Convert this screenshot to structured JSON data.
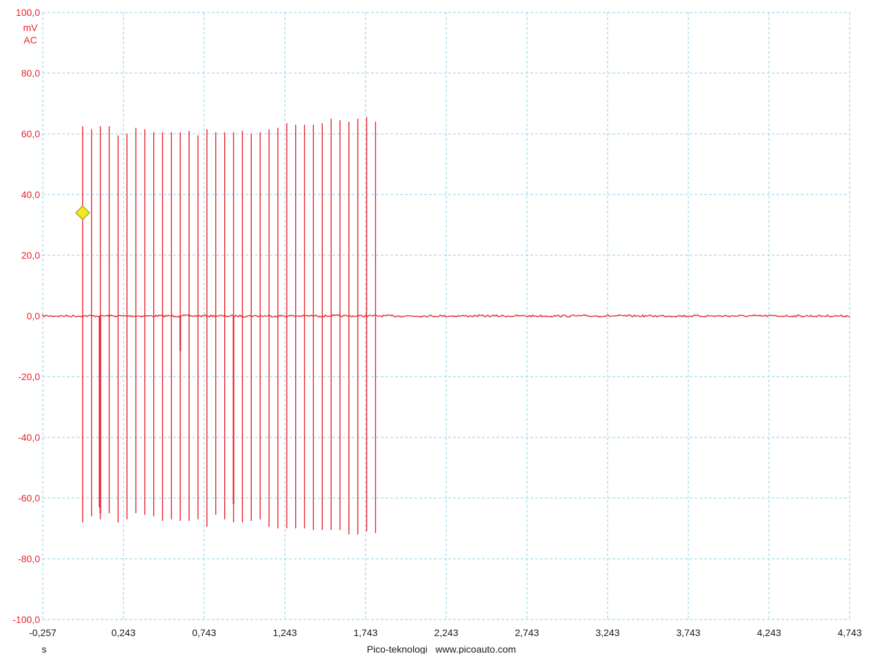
{
  "chart_data": {
    "type": "line",
    "title": "",
    "y_unit_lines": [
      "mV",
      "AC"
    ],
    "xlabel": "s",
    "footer": "Pico-teknologi   www.picoauto.com",
    "xlim": [
      -0.257,
      4.743
    ],
    "ylim": [
      -100,
      100
    ],
    "grid": true,
    "y_ticks": [
      "100,0",
      "80,0",
      "60,0",
      "40,0",
      "20,0",
      "0,0",
      "-20,0",
      "-40,0",
      "-60,0",
      "-80,0",
      "-100,0"
    ],
    "x_ticks": [
      "-0,257",
      "0,243",
      "0,743",
      "1,243",
      "1,743",
      "2,243",
      "2,743",
      "3,243",
      "3,743",
      "4,243",
      "4,743"
    ],
    "trigger_marker": {
      "x": -0.01,
      "y": 34
    },
    "colors": {
      "trace": "#e8222a",
      "grid": "#8ecfe6",
      "marker_fill": "#f5e61e",
      "axis_text": "#1a1a1a"
    },
    "series": [
      {
        "baseline_mV": 0,
        "pulses": [
          {
            "t": -0.01,
            "max": 62.5,
            "min": -68
          },
          {
            "t": 0.045,
            "max": 61.5,
            "min": -66
          },
          {
            "t": 0.1,
            "max": 62.5,
            "min": -67
          },
          {
            "t": 0.155,
            "max": 62.5,
            "min": -65
          },
          {
            "t": 0.21,
            "max": 59.5,
            "min": -68
          },
          {
            "t": 0.265,
            "max": 60,
            "min": -67
          },
          {
            "t": 0.32,
            "max": 62,
            "min": -65
          },
          {
            "t": 0.375,
            "max": 61.5,
            "min": -65.5
          },
          {
            "t": 0.43,
            "max": 60.5,
            "min": -66
          },
          {
            "t": 0.485,
            "max": 60.5,
            "min": -67.5
          },
          {
            "t": 0.54,
            "max": 60.5,
            "min": -67
          },
          {
            "t": 0.595,
            "max": 60.5,
            "min": -67.5
          },
          {
            "t": 0.65,
            "max": 61,
            "min": -67.5
          },
          {
            "t": 0.705,
            "max": 59.5,
            "min": -67
          },
          {
            "t": 0.76,
            "max": 61.5,
            "min": -69.5
          },
          {
            "t": 0.815,
            "max": 60.5,
            "min": -65.5
          },
          {
            "t": 0.87,
            "max": 60.5,
            "min": -67
          },
          {
            "t": 0.925,
            "max": 60.5,
            "min": -68
          },
          {
            "t": 0.98,
            "max": 61,
            "min": -68
          },
          {
            "t": 1.035,
            "max": 60,
            "min": -67.5
          },
          {
            "t": 1.09,
            "max": 60.5,
            "min": -67
          },
          {
            "t": 1.145,
            "max": 61.5,
            "min": -69.5
          },
          {
            "t": 1.2,
            "max": 62,
            "min": -70
          },
          {
            "t": 1.255,
            "max": 63.5,
            "min": -70
          },
          {
            "t": 1.31,
            "max": 63,
            "min": -70
          },
          {
            "t": 1.365,
            "max": 63,
            "min": -70
          },
          {
            "t": 1.42,
            "max": 63,
            "min": -70.5
          },
          {
            "t": 1.475,
            "max": 63.5,
            "min": -70.5
          },
          {
            "t": 1.53,
            "max": 65,
            "min": -70.5
          },
          {
            "t": 1.585,
            "max": 64.5,
            "min": -70.5
          },
          {
            "t": 1.64,
            "max": 64,
            "min": -72
          },
          {
            "t": 1.695,
            "max": 65,
            "min": -72
          },
          {
            "t": 1.75,
            "max": 65.5,
            "min": -71
          },
          {
            "t": 1.805,
            "max": 64,
            "min": -71.5
          }
        ],
        "negative_spikes": [
          {
            "t": 0.095,
            "min": -63
          },
          {
            "t": 0.1,
            "min": -65
          },
          {
            "t": 0.595,
            "min": -11.5
          },
          {
            "t": 0.925,
            "min": -62
          }
        ]
      }
    ]
  }
}
